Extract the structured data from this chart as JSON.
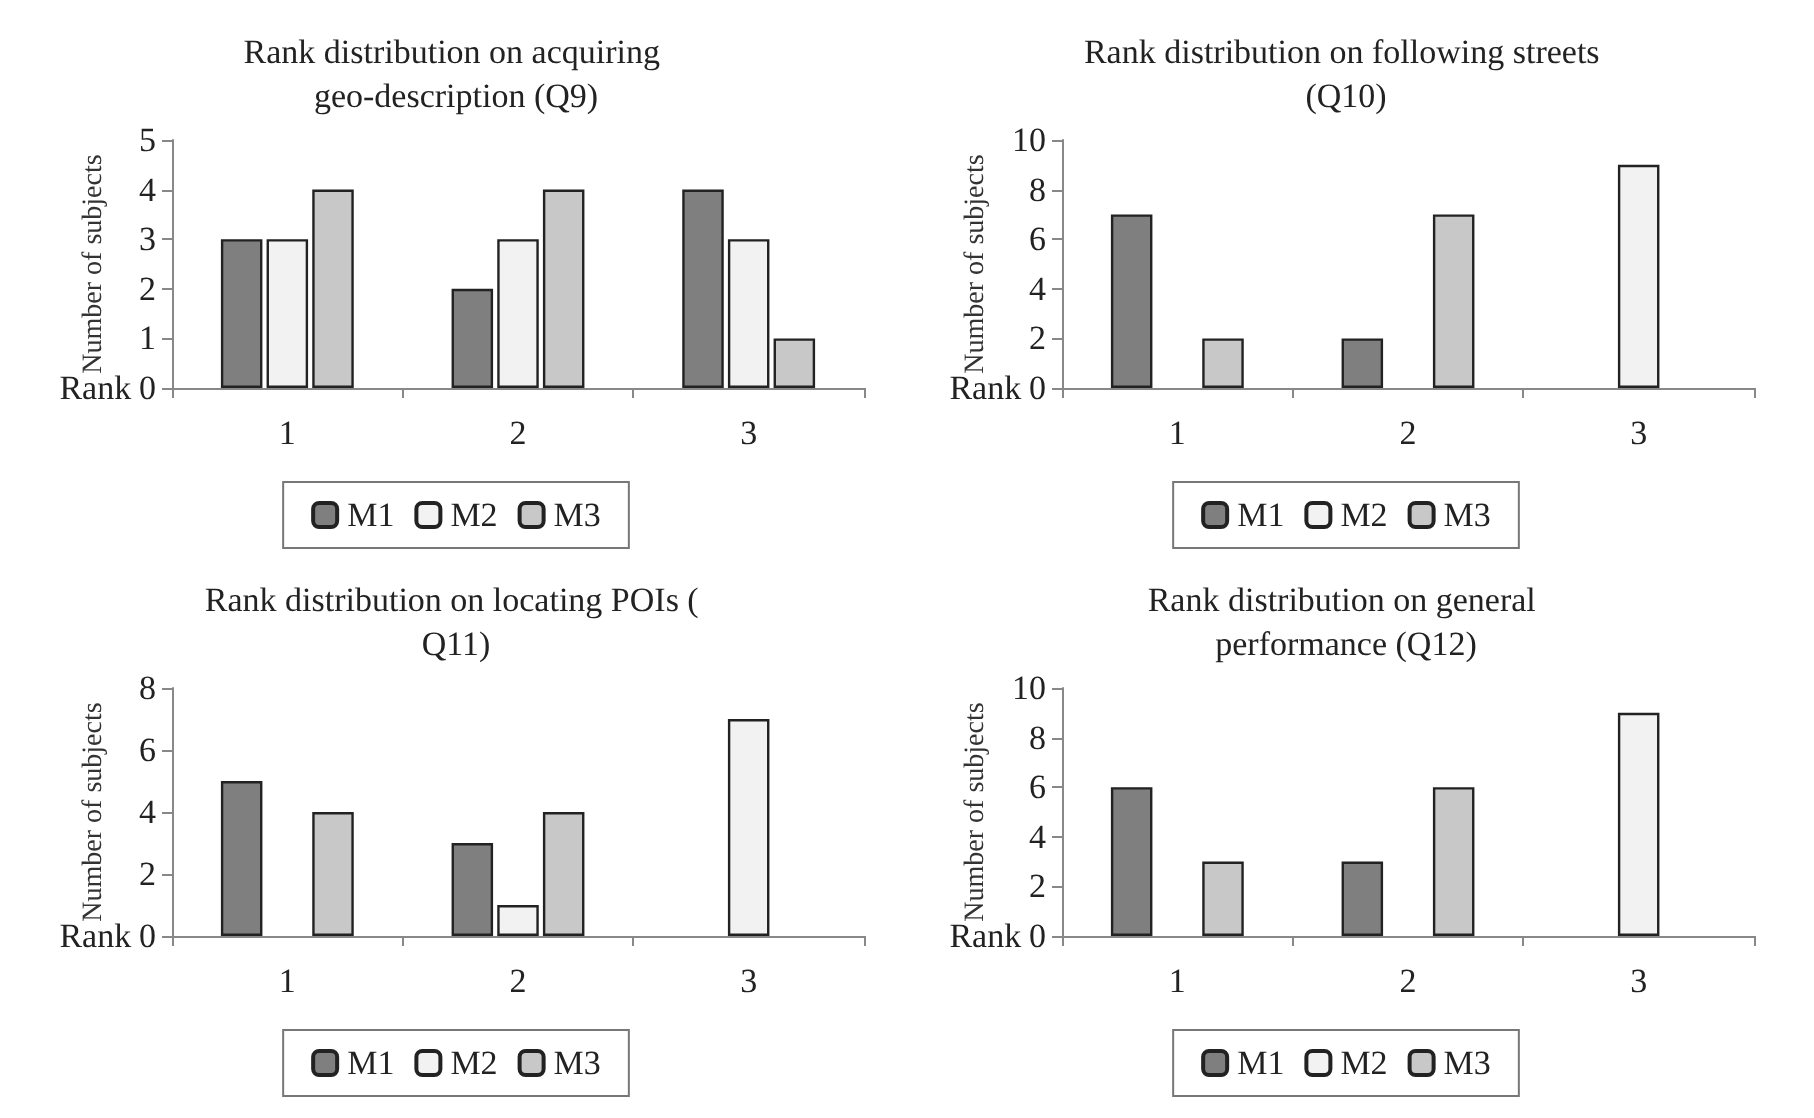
{
  "chart_data": [
    {
      "type": "bar",
      "title": "Rank distribution on acquiring geo-description (Q9)",
      "xlabel": "Rank",
      "ylabel": "Number of subjects",
      "categories": [
        "1",
        "2",
        "3"
      ],
      "series": [
        {
          "name": "M1",
          "color": "#7f7f7f",
          "values": [
            3,
            2,
            4
          ]
        },
        {
          "name": "M2",
          "color": "#f2f2f2",
          "values": [
            3,
            3,
            3
          ]
        },
        {
          "name": "M3",
          "color": "#c8c8c8",
          "values": [
            4,
            4,
            1
          ]
        }
      ],
      "ylim": [
        0,
        5
      ],
      "yticks": [
        0,
        1,
        2,
        3,
        4,
        5
      ],
      "grid": false,
      "legend": "bottom"
    },
    {
      "type": "bar",
      "title": "Rank distribution on following streets (Q10)",
      "xlabel": "Rank",
      "ylabel": "Number of subjects",
      "categories": [
        "1",
        "2",
        "3"
      ],
      "series": [
        {
          "name": "M1",
          "color": "#7f7f7f",
          "values": [
            7,
            2,
            0
          ]
        },
        {
          "name": "M2",
          "color": "#f2f2f2",
          "values": [
            0,
            0,
            9
          ]
        },
        {
          "name": "M3",
          "color": "#c8c8c8",
          "values": [
            2,
            7,
            0
          ]
        }
      ],
      "ylim": [
        0,
        10
      ],
      "yticks": [
        0,
        2,
        4,
        6,
        8,
        10
      ],
      "grid": false,
      "legend": "bottom"
    },
    {
      "type": "bar",
      "title": "Rank distribution on locating POIs ( Q11)",
      "xlabel": "Rank",
      "ylabel": "Number of subjects",
      "categories": [
        "1",
        "2",
        "3"
      ],
      "series": [
        {
          "name": "M1",
          "color": "#7f7f7f",
          "values": [
            5,
            3,
            0
          ]
        },
        {
          "name": "M2",
          "color": "#f2f2f2",
          "values": [
            0,
            1,
            7
          ]
        },
        {
          "name": "M3",
          "color": "#c8c8c8",
          "values": [
            4,
            4,
            0
          ]
        }
      ],
      "ylim": [
        0,
        8
      ],
      "yticks": [
        0,
        2,
        4,
        6,
        8
      ],
      "grid": false,
      "legend": "bottom"
    },
    {
      "type": "bar",
      "title": "Rank distribution on general performance (Q12)",
      "xlabel": "Rank",
      "ylabel": "Number of subjects",
      "categories": [
        "1",
        "2",
        "3"
      ],
      "series": [
        {
          "name": "M1",
          "color": "#7f7f7f",
          "values": [
            6,
            3,
            0
          ]
        },
        {
          "name": "M2",
          "color": "#f2f2f2",
          "values": [
            0,
            0,
            9
          ]
        },
        {
          "name": "M3",
          "color": "#c8c8c8",
          "values": [
            3,
            6,
            0
          ]
        }
      ],
      "ylim": [
        0,
        10
      ],
      "yticks": [
        0,
        2,
        4,
        6,
        8,
        10
      ],
      "grid": false,
      "legend": "bottom"
    }
  ]
}
